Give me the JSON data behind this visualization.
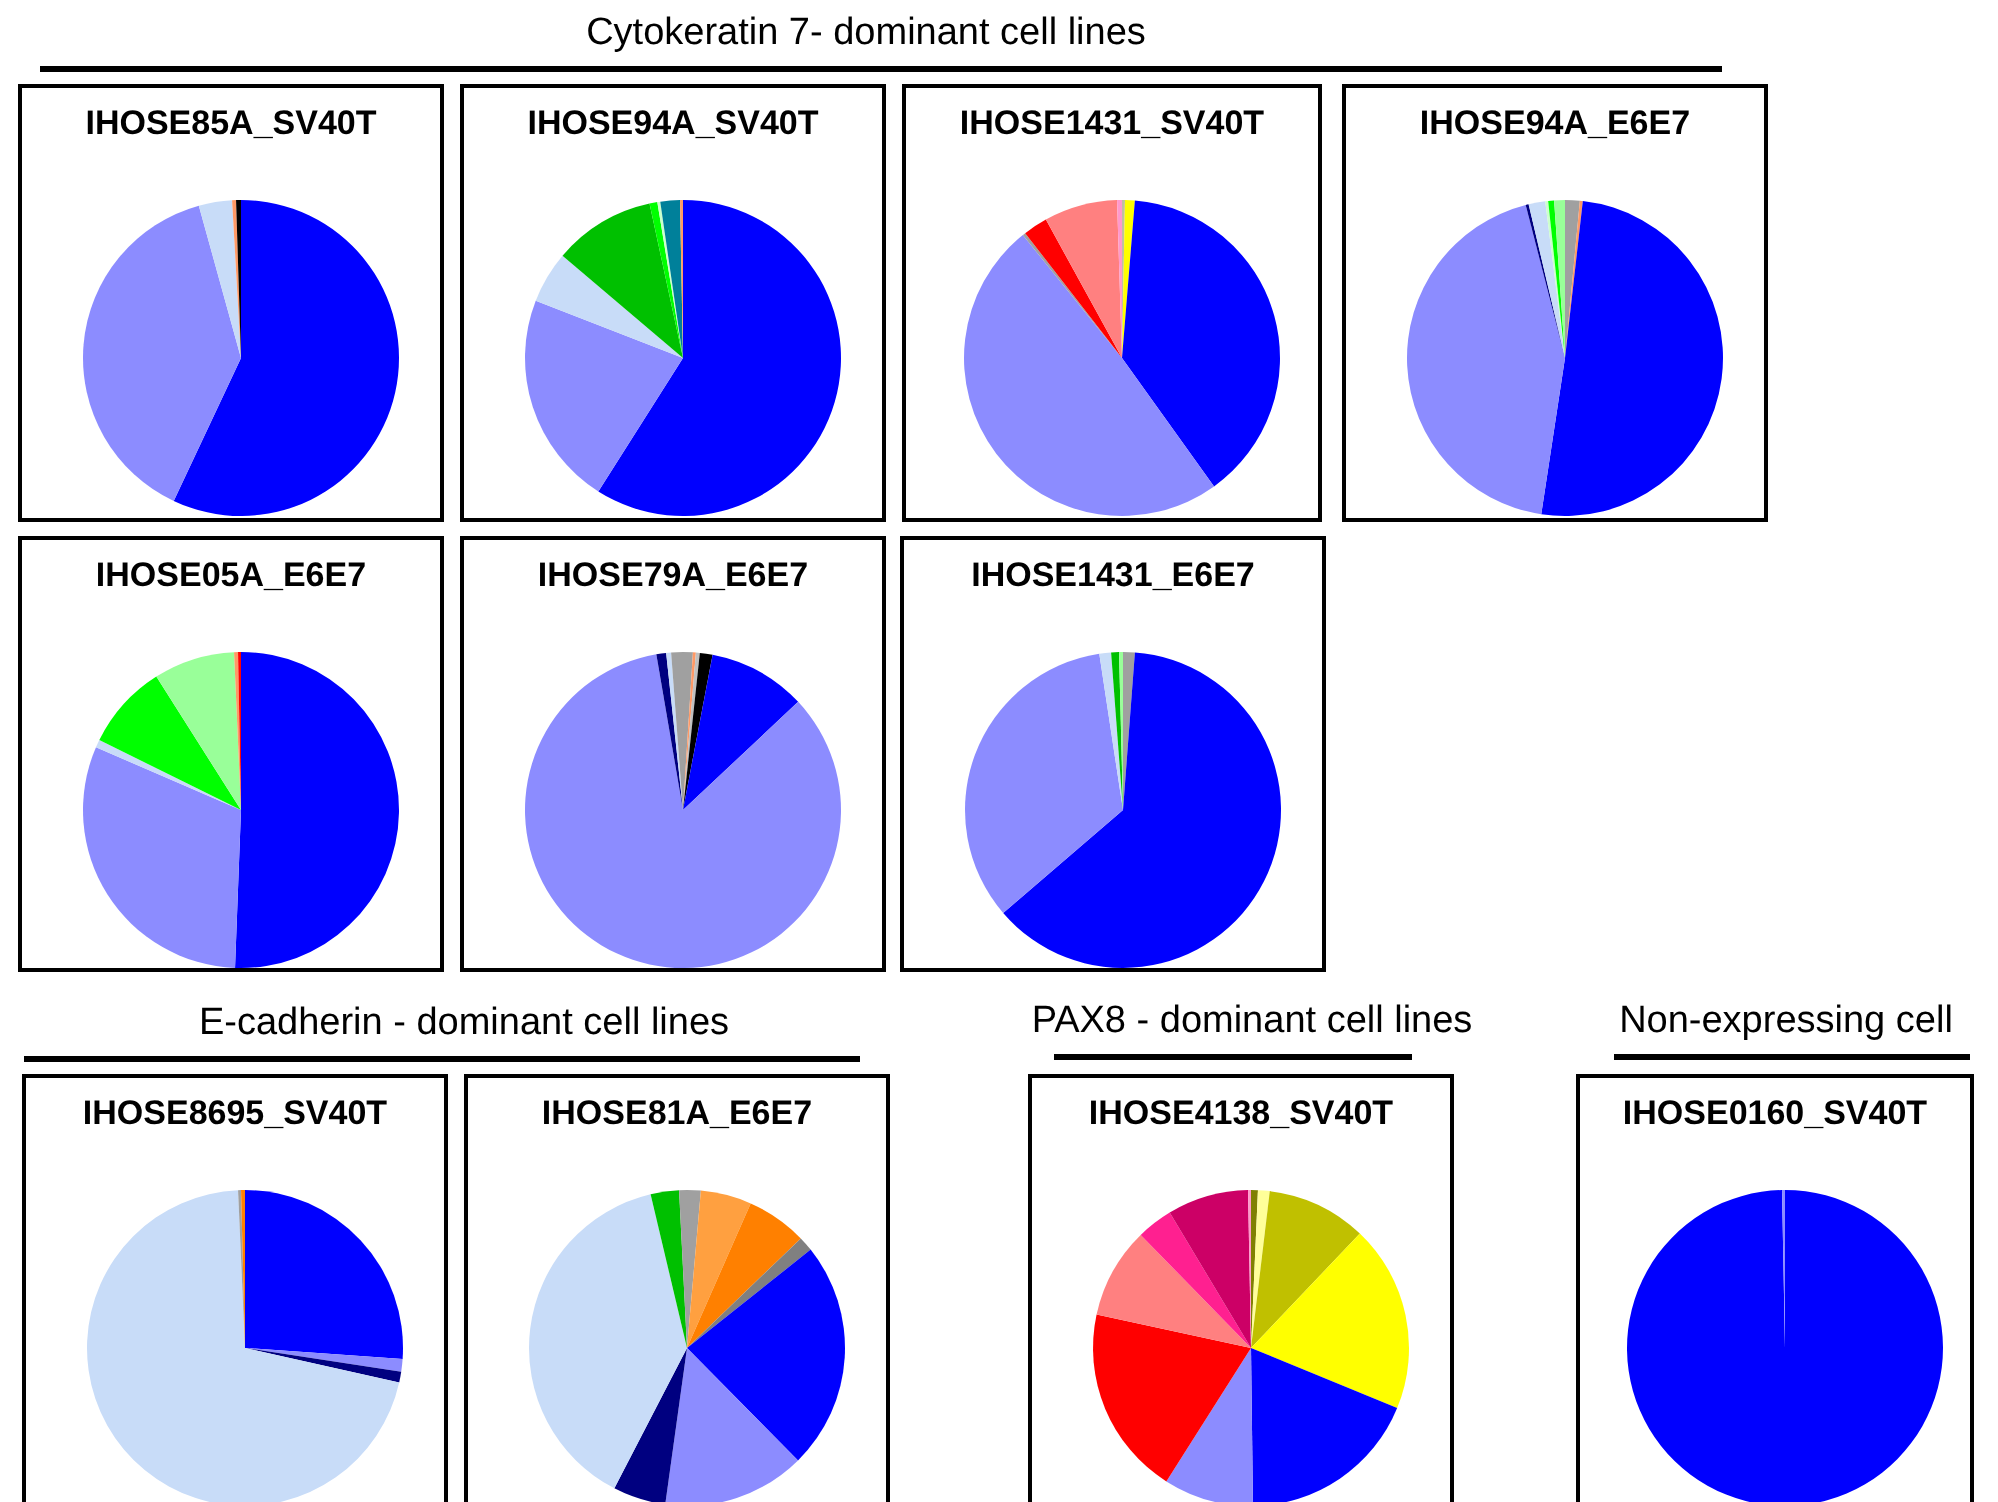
{
  "chart_data": [
    {
      "type": "pie",
      "title": "IHOSE85A_SV40T",
      "annotations": [
        "Cytokeratin 7- dominant cell lines"
      ],
      "categories": [
        null,
        null,
        null,
        null,
        null
      ],
      "values": [
        57.0,
        38.7,
        3.4,
        0.4,
        0.5
      ],
      "colors": [
        "#0000ff",
        "#8c8cff",
        "#c8dcf8",
        "#ff9966",
        "#000000"
      ]
    },
    {
      "type": "pie",
      "title": "IHOSE94A_SV40T",
      "categories": [
        null,
        null,
        null,
        null,
        null,
        null,
        null,
        null
      ],
      "values": [
        59.0,
        21.9,
        5.3,
        10.4,
        0.8,
        0.3,
        2.0,
        0.3
      ],
      "colors": [
        "#0000ff",
        "#8c8cff",
        "#c8dcf8",
        "#00c000",
        "#00ff00",
        "#ccffcc",
        "#00809a",
        "#ff9966"
      ]
    },
    {
      "type": "pie",
      "title": "IHOSE1431_SV40T",
      "categories": [
        null,
        null,
        null,
        null,
        null,
        null,
        null,
        null
      ],
      "values": [
        0.3,
        1.0,
        38.8,
        49.1,
        0.3,
        2.5,
        7.5,
        0.5
      ],
      "colors": [
        "#c0c0a0",
        "#ffff00",
        "#0000ff",
        "#8c8cff",
        "#a0a0a0",
        "#ff0000",
        "#ff8080",
        "#ff99cc"
      ]
    },
    {
      "type": "pie",
      "title": "IHOSE94A_E6E7",
      "categories": [
        null,
        null,
        null,
        null,
        null,
        null,
        null,
        null,
        null
      ],
      "values": [
        1.5,
        0.3,
        50.6,
        43.6,
        0.3,
        1.7,
        0.3,
        0.6,
        1.1
      ],
      "colors": [
        "#a0a0a0",
        "#ff9966",
        "#0000ff",
        "#8c8cff",
        "#000080",
        "#c8dcf8",
        "#ccffcc",
        "#00ff00",
        "#99ff99"
      ]
    },
    {
      "type": "pie",
      "title": "IHOSE05A_E6E7",
      "categories": [
        null,
        null,
        null,
        null,
        null,
        null,
        null
      ],
      "values": [
        50.6,
        30.9,
        0.8,
        8.7,
        8.3,
        0.4,
        0.3
      ],
      "colors": [
        "#0000ff",
        "#8c8cff",
        "#c8dcf8",
        "#00ff00",
        "#99ff99",
        "#ff9966",
        "#ff0000"
      ]
    },
    {
      "type": "pie",
      "title": "IHOSE79A_E6E7",
      "categories": [
        null,
        null,
        null,
        null,
        null,
        null,
        null,
        null,
        null
      ],
      "values": [
        1.0,
        0.3,
        0.4,
        1.3,
        10.0,
        84.3,
        1.0,
        0.5,
        1.2
      ],
      "colors": [
        "#a0a0a0",
        "#ff9966",
        "#c0c0c0",
        "#000000",
        "#0000ff",
        "#8c8cff",
        "#000080",
        "#c8dcf8",
        "#a0a0a0"
      ]
    },
    {
      "type": "pie",
      "title": "IHOSE1431_E6E7",
      "categories": [
        null,
        null,
        null,
        null,
        null,
        null
      ],
      "values": [
        1.2,
        62.5,
        33.9,
        1.2,
        0.8,
        0.4
      ],
      "colors": [
        "#a0a0a0",
        "#0000ff",
        "#8c8cff",
        "#c8dcf8",
        "#00c000",
        "#99ff99"
      ]
    },
    {
      "type": "pie",
      "title": "IHOSE8695_SV40T",
      "annotations": [
        "E-cadherin - dominant cell lines"
      ],
      "categories": [
        null,
        null,
        null,
        null,
        null,
        null
      ],
      "values": [
        26.1,
        1.3,
        1.1,
        70.8,
        0.3,
        0.4
      ],
      "colors": [
        "#0000ff",
        "#8c8cff",
        "#000080",
        "#c8dcf8",
        "#a0a0a0",
        "#ff8000"
      ]
    },
    {
      "type": "pie",
      "title": "IHOSE81A_E6E7",
      "categories": [
        null,
        null,
        null,
        null,
        null,
        null,
        null,
        null,
        null,
        null
      ],
      "values": [
        1.4,
        5.2,
        6.2,
        1.5,
        23.3,
        14.6,
        5.4,
        38.7,
        2.9,
        0.8
      ],
      "colors": [
        "#a0a0a0",
        "#ffa040",
        "#ff8000",
        "#808080",
        "#0000ff",
        "#8c8cff",
        "#000080",
        "#c8dcf8",
        "#00c000",
        "#a0a0a0"
      ]
    },
    {
      "type": "pie",
      "title": "IHOSE4138_SV40T",
      "annotations": [
        "PAX8 - dominant cell lines"
      ],
      "categories": [
        null,
        null,
        null,
        null,
        null,
        null,
        null,
        null,
        null,
        null,
        null
      ],
      "values": [
        0.7,
        1.2,
        10.2,
        19.1,
        18.6,
        9.2,
        19.4,
        9.3,
        3.7,
        8.3,
        0.3
      ],
      "colors": [
        "#808000",
        "#ffff99",
        "#c0c000",
        "#ffff00",
        "#0000ff",
        "#8c8cff",
        "#ff0000",
        "#ff8080",
        "#ff2090",
        "#cc0066",
        "#ff99cc"
      ]
    },
    {
      "type": "pie",
      "title": "IHOSE0160_SV40T",
      "annotations": [
        "Non-expressing cell"
      ],
      "categories": [
        null,
        null
      ],
      "values": [
        99.7,
        0.3
      ],
      "colors": [
        "#0000ff",
        "#8c8cff"
      ]
    }
  ]
}
